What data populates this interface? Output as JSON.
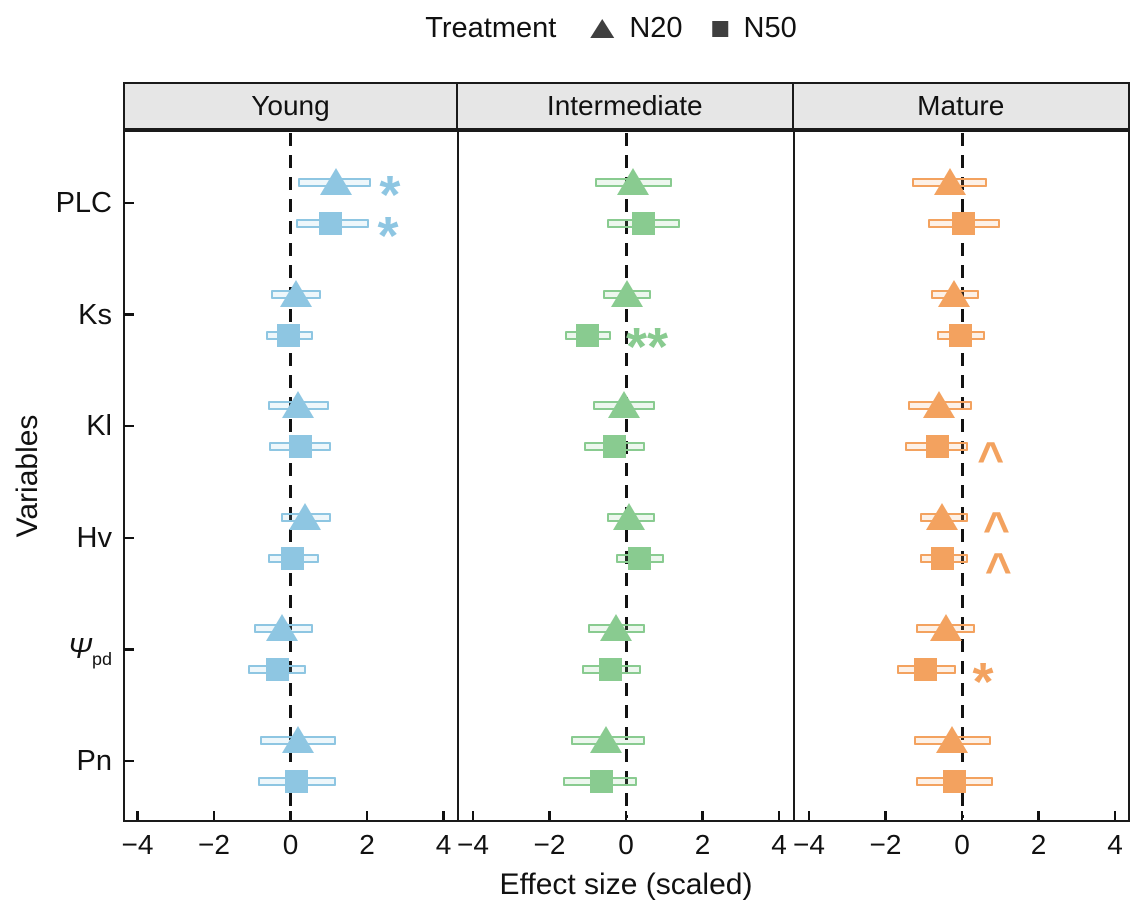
{
  "legend": {
    "title": "Treatment"
  },
  "chart_data": {
    "type": "scatter",
    "subtype": "effect-size-forest-plot-with-ci",
    "xlabel": "Effect size (scaled)",
    "ylabel": "Variables",
    "xlim": [
      -4.4,
      4.4
    ],
    "grid": "off",
    "legend_position": "top",
    "legend_marker_color": "#3f3f3f",
    "zero_line": 0,
    "x_ticks": {
      "values": [
        -4,
        -2,
        0,
        2,
        4
      ],
      "labels": [
        "−4",
        "−2",
        "0",
        "2",
        "4"
      ]
    },
    "facets": [
      {
        "label": "Young",
        "color": "#8ec6e2"
      },
      {
        "label": "Intermediate",
        "color": "#89cb90"
      },
      {
        "label": "Mature",
        "color": "#f3a25f"
      }
    ],
    "treatments": [
      {
        "label": "N20",
        "marker": "triangle"
      },
      {
        "label": "N50",
        "marker": "square"
      }
    ],
    "y_categories": [
      {
        "id": "PLC",
        "label": "PLC"
      },
      {
        "id": "Ks",
        "label": "Ks"
      },
      {
        "id": "Kl",
        "label": "Kl"
      },
      {
        "id": "Hv",
        "label": "Hv"
      },
      {
        "id": "Psi_pd",
        "label": "Ψ",
        "sub": "pd",
        "italic": true
      },
      {
        "id": "Pn",
        "label": "Pn"
      }
    ],
    "points": [
      {
        "facet": "Young",
        "variable": "PLC",
        "treatment": "N20",
        "value": 1.2,
        "lo": 0.2,
        "hi": 2.1,
        "sig": "*",
        "sig_x": 2.6
      },
      {
        "facet": "Young",
        "variable": "PLC",
        "treatment": "N50",
        "value": 1.05,
        "lo": 0.15,
        "hi": 2.05,
        "sig": "*",
        "sig_x": 2.55
      },
      {
        "facet": "Young",
        "variable": "Ks",
        "treatment": "N20",
        "value": 0.15,
        "lo": -0.5,
        "hi": 0.8
      },
      {
        "facet": "Young",
        "variable": "Ks",
        "treatment": "N50",
        "value": -0.05,
        "lo": -0.65,
        "hi": 0.6
      },
      {
        "facet": "Young",
        "variable": "Kl",
        "treatment": "N20",
        "value": 0.2,
        "lo": -0.6,
        "hi": 1.0
      },
      {
        "facet": "Young",
        "variable": "Kl",
        "treatment": "N50",
        "value": 0.25,
        "lo": -0.55,
        "hi": 1.05
      },
      {
        "facet": "Young",
        "variable": "Hv",
        "treatment": "N20",
        "value": 0.4,
        "lo": -0.25,
        "hi": 1.05
      },
      {
        "facet": "Young",
        "variable": "Hv",
        "treatment": "N50",
        "value": 0.05,
        "lo": -0.6,
        "hi": 0.75
      },
      {
        "facet": "Young",
        "variable": "Psi_pd",
        "treatment": "N20",
        "value": -0.2,
        "lo": -0.95,
        "hi": 0.6
      },
      {
        "facet": "Young",
        "variable": "Psi_pd",
        "treatment": "N50",
        "value": -0.35,
        "lo": -1.1,
        "hi": 0.4
      },
      {
        "facet": "Young",
        "variable": "Pn",
        "treatment": "N20",
        "value": 0.2,
        "lo": -0.8,
        "hi": 1.2
      },
      {
        "facet": "Young",
        "variable": "Pn",
        "treatment": "N50",
        "value": 0.15,
        "lo": -0.85,
        "hi": 1.2
      },
      {
        "facet": "Intermediate",
        "variable": "PLC",
        "treatment": "N20",
        "value": 0.2,
        "lo": -0.8,
        "hi": 1.2
      },
      {
        "facet": "Intermediate",
        "variable": "PLC",
        "treatment": "N50",
        "value": 0.45,
        "lo": -0.5,
        "hi": 1.4
      },
      {
        "facet": "Intermediate",
        "variable": "Ks",
        "treatment": "N20",
        "value": 0.05,
        "lo": -0.6,
        "hi": 0.65
      },
      {
        "facet": "Intermediate",
        "variable": "Ks",
        "treatment": "N50",
        "value": -1.0,
        "lo": -1.6,
        "hi": -0.4,
        "sig": "**",
        "sig_x": 0.55
      },
      {
        "facet": "Intermediate",
        "variable": "Kl",
        "treatment": "N20",
        "value": -0.05,
        "lo": -0.85,
        "hi": 0.75
      },
      {
        "facet": "Intermediate",
        "variable": "Kl",
        "treatment": "N50",
        "value": -0.3,
        "lo": -1.1,
        "hi": 0.5
      },
      {
        "facet": "Intermediate",
        "variable": "Hv",
        "treatment": "N20",
        "value": 0.1,
        "lo": -0.5,
        "hi": 0.75
      },
      {
        "facet": "Intermediate",
        "variable": "Hv",
        "treatment": "N50",
        "value": 0.35,
        "lo": -0.25,
        "hi": 1.0
      },
      {
        "facet": "Intermediate",
        "variable": "Psi_pd",
        "treatment": "N20",
        "value": -0.25,
        "lo": -1.0,
        "hi": 0.5
      },
      {
        "facet": "Intermediate",
        "variable": "Psi_pd",
        "treatment": "N50",
        "value": -0.4,
        "lo": -1.15,
        "hi": 0.4
      },
      {
        "facet": "Intermediate",
        "variable": "Pn",
        "treatment": "N20",
        "value": -0.5,
        "lo": -1.45,
        "hi": 0.5
      },
      {
        "facet": "Intermediate",
        "variable": "Pn",
        "treatment": "N50",
        "value": -0.65,
        "lo": -1.65,
        "hi": 0.3
      },
      {
        "facet": "Mature",
        "variable": "PLC",
        "treatment": "N20",
        "value": -0.3,
        "lo": -1.3,
        "hi": 0.65
      },
      {
        "facet": "Mature",
        "variable": "PLC",
        "treatment": "N50",
        "value": 0.05,
        "lo": -0.9,
        "hi": 1.0
      },
      {
        "facet": "Mature",
        "variable": "Ks",
        "treatment": "N20",
        "value": -0.2,
        "lo": -0.8,
        "hi": 0.45
      },
      {
        "facet": "Mature",
        "variable": "Ks",
        "treatment": "N50",
        "value": -0.05,
        "lo": -0.65,
        "hi": 0.6
      },
      {
        "facet": "Mature",
        "variable": "Kl",
        "treatment": "N20",
        "value": -0.6,
        "lo": -1.4,
        "hi": 0.25
      },
      {
        "facet": "Mature",
        "variable": "Kl",
        "treatment": "N50",
        "value": -0.65,
        "lo": -1.5,
        "hi": 0.15,
        "sig": "^",
        "sig_x": 0.75
      },
      {
        "facet": "Mature",
        "variable": "Hv",
        "treatment": "N20",
        "value": -0.5,
        "lo": -1.1,
        "hi": 0.15,
        "sig": "^",
        "sig_x": 0.9
      },
      {
        "facet": "Mature",
        "variable": "Hv",
        "treatment": "N50",
        "value": -0.5,
        "lo": -1.1,
        "hi": 0.15,
        "sig": "^",
        "sig_x": 0.95
      },
      {
        "facet": "Mature",
        "variable": "Psi_pd",
        "treatment": "N20",
        "value": -0.4,
        "lo": -1.2,
        "hi": 0.35
      },
      {
        "facet": "Mature",
        "variable": "Psi_pd",
        "treatment": "N50",
        "value": -0.95,
        "lo": -1.7,
        "hi": -0.15,
        "sig": "*",
        "sig_x": 0.55
      },
      {
        "facet": "Mature",
        "variable": "Pn",
        "treatment": "N20",
        "value": -0.25,
        "lo": -1.25,
        "hi": 0.75
      },
      {
        "facet": "Mature",
        "variable": "Pn",
        "treatment": "N50",
        "value": -0.2,
        "lo": -1.2,
        "hi": 0.8
      }
    ]
  }
}
